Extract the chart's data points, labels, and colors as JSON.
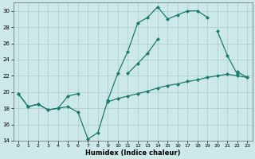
{
  "xlabel": "Humidex (Indice chaleur)",
  "x": [
    0,
    1,
    2,
    3,
    4,
    5,
    6,
    7,
    8,
    9,
    10,
    11,
    12,
    13,
    14,
    15,
    16,
    17,
    18,
    19,
    20,
    21,
    22,
    23
  ],
  "line_upper": [
    19.8,
    18.2,
    18.5,
    17.8,
    18.0,
    18.2,
    17.5,
    14.2,
    15.0,
    19.0,
    22.3,
    25.0,
    28.5,
    29.2,
    30.5,
    29.0,
    29.5,
    30.0,
    30.0,
    29.2,
    null,
    null,
    22.5,
    21.8
  ],
  "line_mid": [
    19.8,
    18.2,
    18.5,
    17.8,
    18.0,
    19.5,
    19.8,
    null,
    null,
    null,
    null,
    22.3,
    23.5,
    24.8,
    26.5,
    null,
    null,
    null,
    null,
    null,
    27.5,
    24.5,
    22.2,
    null
  ],
  "line_low": [
    null,
    null,
    null,
    null,
    null,
    null,
    null,
    null,
    null,
    18.8,
    19.2,
    19.5,
    19.8,
    20.1,
    20.5,
    20.8,
    21.0,
    21.3,
    21.5,
    21.8,
    22.0,
    22.2,
    22.0,
    21.8
  ],
  "color": "#1a7a6e",
  "bg_color": "#cde8e8",
  "grid_color": "#aacccc",
  "ylim": [
    14,
    31
  ],
  "yticks": [
    14,
    16,
    18,
    20,
    22,
    24,
    26,
    28,
    30
  ],
  "xlim": [
    -0.5,
    23.5
  ]
}
